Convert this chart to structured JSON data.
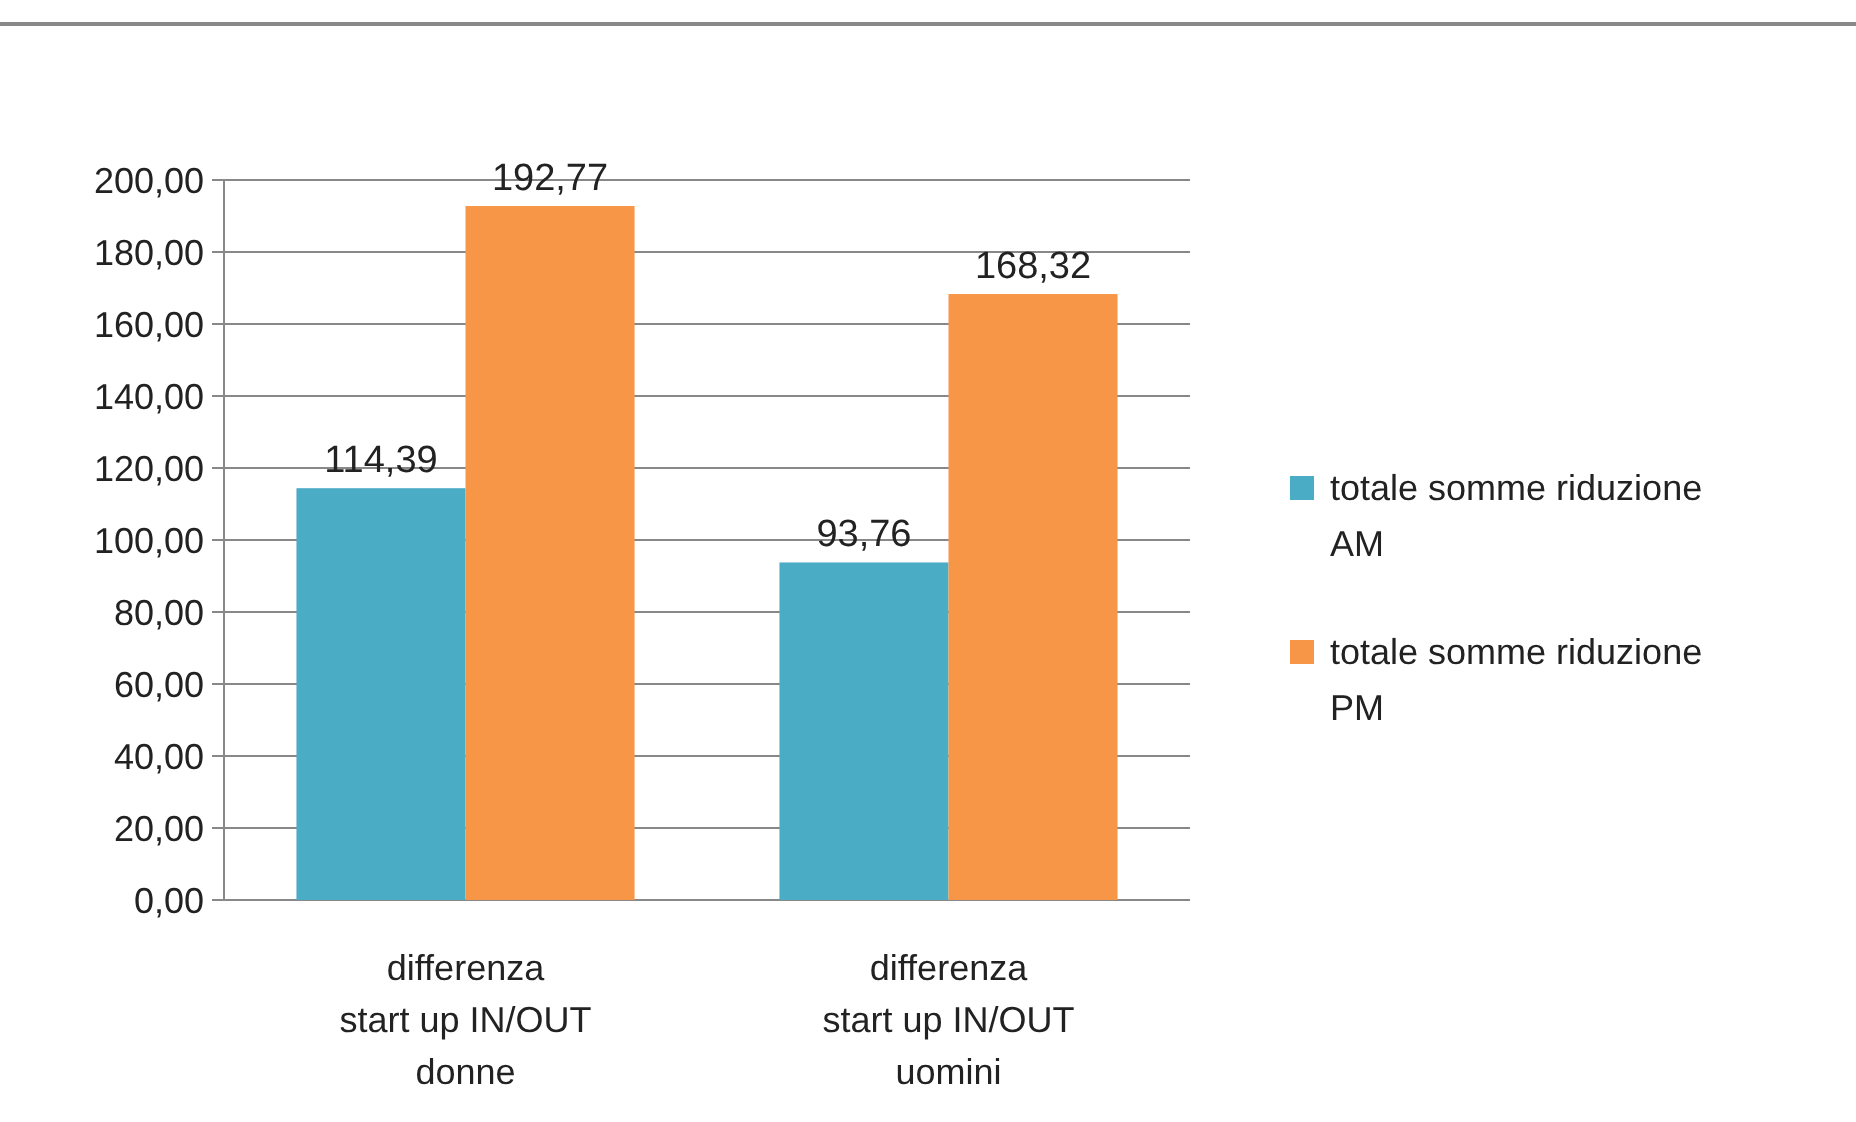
{
  "chart_data": {
    "type": "bar",
    "categories": [
      "differenza start up IN/OUT donne",
      "differenza start up IN/OUT uomini"
    ],
    "series": [
      {
        "name": "totale somme riduzione AM",
        "color": "#4bacc6",
        "values": [
          114.39,
          93.76
        ],
        "value_labels": [
          "114,39",
          "93,76"
        ]
      },
      {
        "name": "totale somme riduzione PM",
        "color": "#f79646",
        "values": [
          192.77,
          168.32
        ],
        "value_labels": [
          "192,77",
          "168,32"
        ]
      }
    ],
    "ylim": [
      0,
      200
    ],
    "yticks": [
      {
        "value": 0,
        "label": "0,00"
      },
      {
        "value": 20,
        "label": "20,00"
      },
      {
        "value": 40,
        "label": "40,00"
      },
      {
        "value": 60,
        "label": "60,00"
      },
      {
        "value": 80,
        "label": "80,00"
      },
      {
        "value": 100,
        "label": "100,00"
      },
      {
        "value": 120,
        "label": "120,00"
      },
      {
        "value": 140,
        "label": "140,00"
      },
      {
        "value": 160,
        "label": "160,00"
      },
      {
        "value": 180,
        "label": "180,00"
      },
      {
        "value": 200,
        "label": "200,00"
      }
    ],
    "grid": "y",
    "legend": "right"
  }
}
